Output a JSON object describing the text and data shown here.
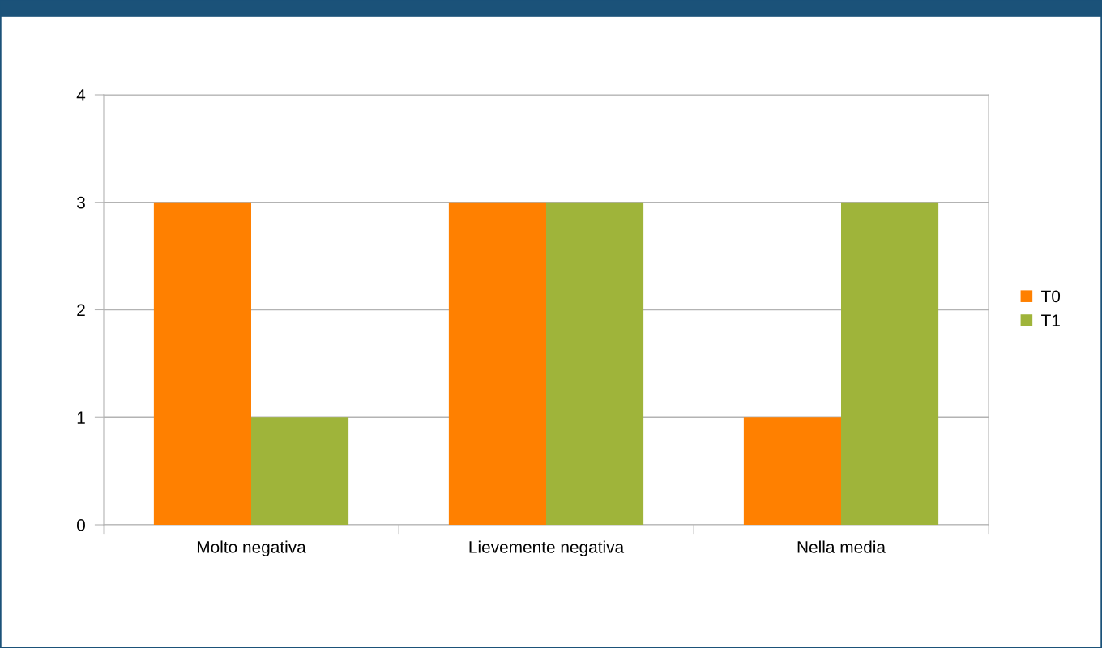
{
  "chart_data": {
    "type": "bar",
    "categories": [
      "Molto negativa",
      "Lievemente negativa",
      "Nella media"
    ],
    "series": [
      {
        "name": "T0",
        "color": "#ff8000",
        "values": [
          3,
          3,
          1
        ]
      },
      {
        "name": "T1",
        "color": "#9fb43a",
        "values": [
          1,
          3,
          3
        ]
      }
    ],
    "ylim": [
      0,
      4
    ],
    "yticks": [
      0,
      1,
      2,
      3,
      4
    ],
    "grid": "y",
    "legend": "right"
  }
}
